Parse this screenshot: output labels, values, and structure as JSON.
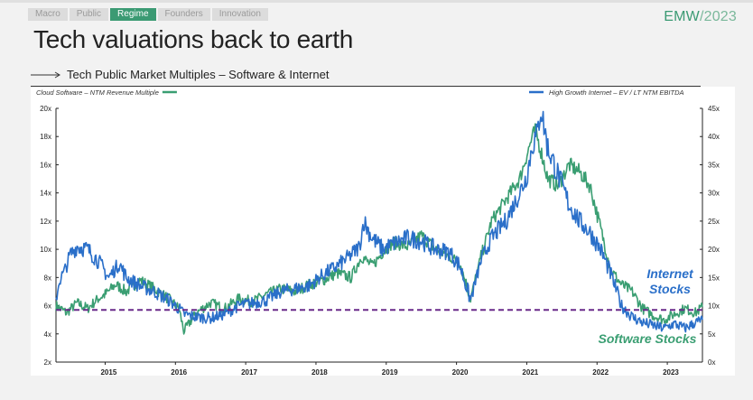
{
  "nav": {
    "tabs": [
      {
        "label": "Macro",
        "active": false
      },
      {
        "label": "Public",
        "active": false
      },
      {
        "label": "Regime",
        "active": true
      },
      {
        "label": "Founders",
        "active": false
      },
      {
        "label": "Innovation",
        "active": false
      }
    ]
  },
  "brand": {
    "name": "EMW",
    "year": "/2023"
  },
  "header": {
    "title": "Tech valuations back to earth",
    "subtitle": "Tech Public Market Multiples – Software & Internet"
  },
  "colors": {
    "software": "#3a9e72",
    "internet": "#2a6fc9",
    "threshold": "#6a2a8a",
    "accent": "#3b9a73"
  },
  "chart_data": {
    "type": "line",
    "legend": {
      "left": "Cloud Software – NTM Revenue Multiple",
      "right": "High Growth Internet – EV / LT NTM EBITDA"
    },
    "annotations": {
      "internet_line1": "Internet",
      "internet_line2": "Stocks",
      "software": "Software Stocks"
    },
    "x_ticks": [
      "2015",
      "2016",
      "2017",
      "2018",
      "2019",
      "2020",
      "2021",
      "2022",
      "2023"
    ],
    "x_range": [
      2014.3,
      2023.5
    ],
    "y_left": {
      "ticks": [
        "2x",
        "4x",
        "6x",
        "8x",
        "10x",
        "12x",
        "14x",
        "16x",
        "18x",
        "20x"
      ],
      "range": [
        2,
        20
      ]
    },
    "y_right": {
      "ticks": [
        "0x",
        "5x",
        "10x",
        "15x",
        "20x",
        "25x",
        "30x",
        "35x",
        "40x",
        "45x"
      ],
      "range": [
        0,
        45
      ]
    },
    "threshold_left": 5.7,
    "series": [
      {
        "name": "Cloud Software – NTM Revenue Multiple",
        "axis": "left",
        "x": [
          2014.3,
          2014.45,
          2014.6,
          2014.75,
          2014.9,
          2015.0,
          2015.15,
          2015.3,
          2015.5,
          2015.7,
          2015.9,
          2016.05,
          2016.12,
          2016.3,
          2016.5,
          2016.7,
          2016.9,
          2017.1,
          2017.3,
          2017.5,
          2017.7,
          2017.9,
          2018.1,
          2018.3,
          2018.5,
          2018.65,
          2018.8,
          2018.95,
          2019.1,
          2019.3,
          2019.5,
          2019.7,
          2019.9,
          2020.05,
          2020.2,
          2020.35,
          2020.5,
          2020.7,
          2020.9,
          2021.05,
          2021.12,
          2021.2,
          2021.3,
          2021.45,
          2021.6,
          2021.75,
          2021.9,
          2022.05,
          2022.2,
          2022.35,
          2022.5,
          2022.65,
          2022.8,
          2022.95,
          2023.1,
          2023.25,
          2023.4,
          2023.5
        ],
        "values": [
          6.0,
          5.5,
          6.2,
          5.8,
          6.5,
          6.8,
          7.5,
          7.0,
          7.8,
          7.2,
          6.5,
          5.8,
          4.2,
          5.5,
          6.2,
          5.8,
          6.5,
          6.3,
          6.8,
          7.2,
          7.0,
          7.5,
          7.8,
          8.3,
          8.0,
          9.5,
          8.8,
          9.8,
          10.5,
          10.2,
          11.0,
          10.0,
          9.5,
          9.0,
          6.5,
          9.5,
          12.0,
          13.5,
          15.0,
          17.5,
          18.5,
          17.0,
          15.0,
          14.5,
          16.0,
          15.5,
          14.5,
          11.5,
          8.5,
          7.5,
          7.0,
          5.8,
          5.3,
          5.0,
          5.4,
          5.8,
          5.5,
          5.9
        ]
      },
      {
        "name": "High Growth Internet – EV / LT NTM EBITDA",
        "axis": "right",
        "x": [
          2014.3,
          2014.35,
          2014.42,
          2014.5,
          2014.6,
          2014.75,
          2014.9,
          2015.05,
          2015.2,
          2015.3,
          2015.5,
          2015.7,
          2015.9,
          2016.05,
          2016.12,
          2016.3,
          2016.5,
          2016.7,
          2016.9,
          2017.1,
          2017.3,
          2017.5,
          2017.7,
          2017.9,
          2018.1,
          2018.3,
          2018.5,
          2018.62,
          2018.68,
          2018.8,
          2018.95,
          2019.1,
          2019.3,
          2019.5,
          2019.7,
          2019.9,
          2020.05,
          2020.2,
          2020.35,
          2020.5,
          2020.7,
          2020.9,
          2021.0,
          2021.08,
          2021.15,
          2021.2,
          2021.3,
          2021.45,
          2021.6,
          2021.75,
          2021.9,
          2022.05,
          2022.2,
          2022.35,
          2022.5,
          2022.65,
          2022.8,
          2022.95,
          2023.1,
          2023.25,
          2023.4,
          2023.5
        ],
        "values": [
          11.0,
          14.5,
          16.0,
          19.0,
          20.5,
          20.0,
          18.0,
          15.0,
          17.5,
          15.0,
          13.5,
          12.5,
          11.0,
          9.5,
          8.5,
          8.0,
          7.8,
          8.5,
          10.0,
          10.5,
          11.0,
          12.5,
          13.0,
          13.5,
          15.5,
          17.0,
          19.0,
          20.5,
          25.0,
          22.0,
          20.0,
          21.0,
          22.0,
          21.5,
          20.0,
          19.5,
          17.0,
          11.0,
          18.0,
          22.0,
          25.0,
          30.0,
          33.0,
          38.5,
          40.5,
          45.0,
          38.0,
          33.0,
          28.0,
          25.0,
          23.0,
          20.0,
          15.5,
          10.0,
          8.0,
          7.0,
          6.5,
          6.0,
          6.8,
          6.0,
          7.0,
          7.5
        ]
      }
    ]
  }
}
